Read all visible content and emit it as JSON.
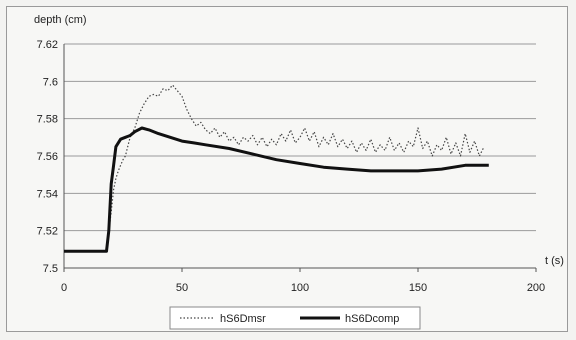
{
  "chart_data": {
    "type": "line",
    "ylabel": "depth (cm)",
    "xlabel": "t (s)",
    "xlim": [
      0,
      200
    ],
    "ylim": [
      7.5,
      7.62
    ],
    "xticks": [
      "0",
      "50",
      "100",
      "150",
      "200"
    ],
    "yticks": [
      "7.5",
      "7.52",
      "7.54",
      "7.56",
      "7.58",
      "7.6",
      "7.62"
    ],
    "grid": "horizontal",
    "legend_position": "bottom",
    "series": [
      {
        "name": "hS6Dmsr",
        "style": "dotted",
        "color": "#444444",
        "x": [
          18,
          20,
          21,
          22,
          23,
          24,
          25,
          26,
          27,
          28,
          30,
          32,
          34,
          36,
          38,
          40,
          42,
          44,
          46,
          48,
          50,
          52,
          54,
          56,
          58,
          60,
          62,
          64,
          66,
          68,
          70,
          72,
          74,
          76,
          78,
          80,
          82,
          84,
          86,
          88,
          90,
          92,
          94,
          96,
          98,
          100,
          102,
          104,
          106,
          108,
          110,
          112,
          114,
          116,
          118,
          120,
          122,
          124,
          126,
          128,
          130,
          132,
          134,
          136,
          138,
          140,
          142,
          144,
          146,
          148,
          150,
          152,
          154,
          156,
          158,
          160,
          162,
          164,
          166,
          168,
          170,
          172,
          174,
          176,
          178
        ],
        "y": [
          7.51,
          7.53,
          7.542,
          7.548,
          7.552,
          7.555,
          7.558,
          7.56,
          7.565,
          7.57,
          7.575,
          7.583,
          7.588,
          7.592,
          7.593,
          7.592,
          7.596,
          7.595,
          7.598,
          7.595,
          7.592,
          7.585,
          7.58,
          7.576,
          7.578,
          7.574,
          7.572,
          7.575,
          7.57,
          7.573,
          7.568,
          7.57,
          7.566,
          7.57,
          7.568,
          7.571,
          7.566,
          7.57,
          7.565,
          7.569,
          7.566,
          7.572,
          7.568,
          7.574,
          7.567,
          7.57,
          7.575,
          7.568,
          7.573,
          7.565,
          7.57,
          7.566,
          7.572,
          7.565,
          7.569,
          7.564,
          7.568,
          7.562,
          7.567,
          7.563,
          7.569,
          7.562,
          7.566,
          7.563,
          7.57,
          7.563,
          7.567,
          7.562,
          7.568,
          7.565,
          7.575,
          7.564,
          7.568,
          7.56,
          7.566,
          7.563,
          7.57,
          7.561,
          7.567,
          7.56,
          7.572,
          7.562,
          7.568,
          7.56,
          7.565
        ]
      },
      {
        "name": "hS6Dcomp",
        "style": "solid",
        "color": "#111111",
        "x": [
          0,
          18,
          19,
          20,
          21,
          22,
          24,
          26,
          28,
          30,
          33,
          36,
          40,
          45,
          50,
          55,
          60,
          70,
          80,
          90,
          100,
          110,
          120,
          130,
          140,
          150,
          160,
          170,
          175,
          180
        ],
        "y": [
          7.509,
          7.509,
          7.52,
          7.545,
          7.555,
          7.565,
          7.569,
          7.57,
          7.571,
          7.573,
          7.575,
          7.574,
          7.572,
          7.57,
          7.568,
          7.567,
          7.566,
          7.564,
          7.561,
          7.558,
          7.556,
          7.554,
          7.553,
          7.552,
          7.552,
          7.552,
          7.553,
          7.555,
          7.555,
          7.555
        ]
      }
    ]
  }
}
